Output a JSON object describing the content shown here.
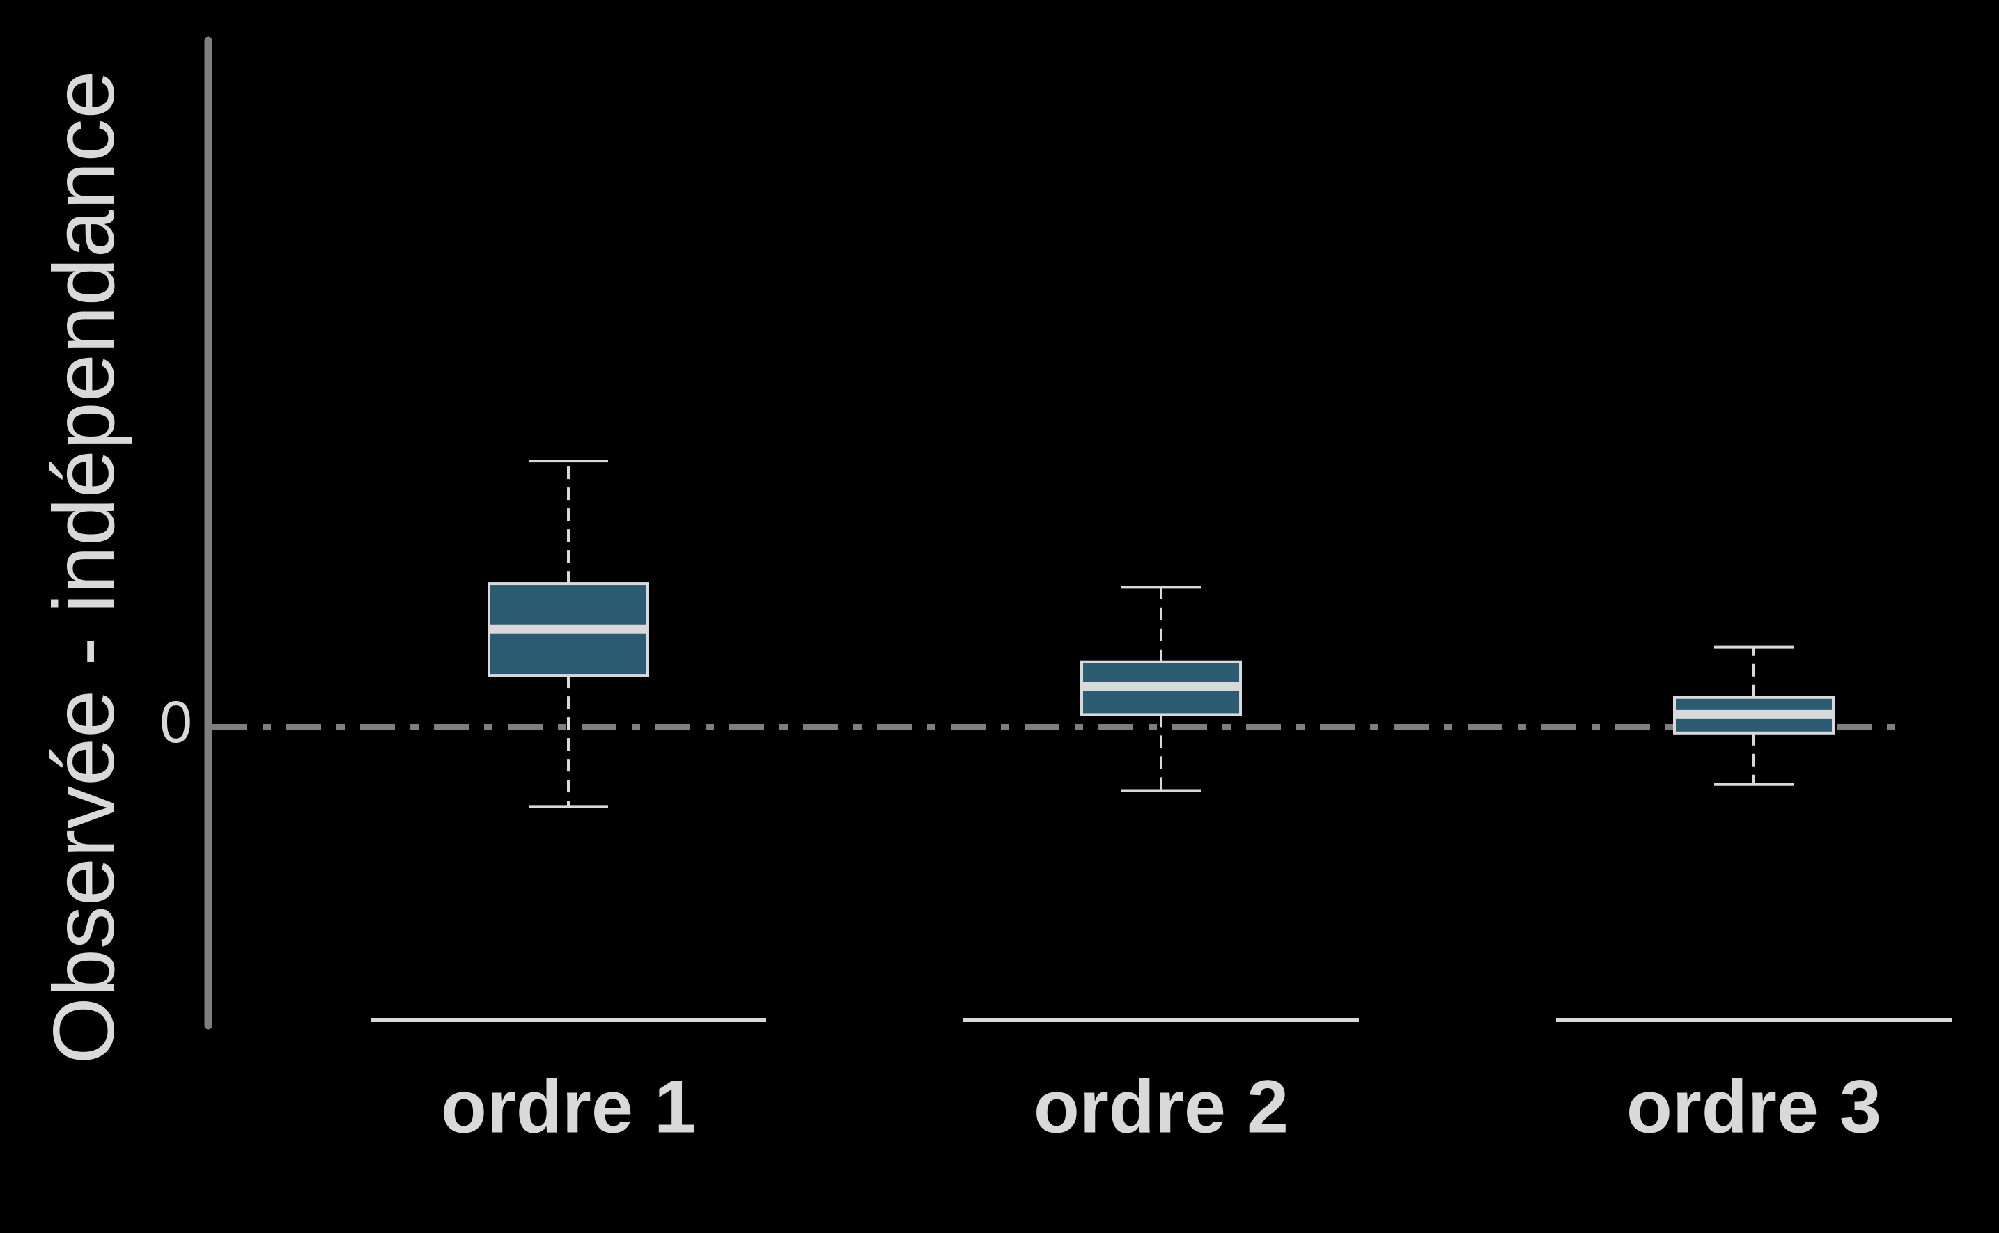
{
  "chart_data": {
    "type": "boxplot",
    "title": "",
    "xlabel": "",
    "ylabel": "Observée - indépendance",
    "y_ticks": [
      "0"
    ],
    "ylim": [
      -1.25,
      4.2
    ],
    "reference_line": {
      "y": 0,
      "style": "dash-dot"
    },
    "grid": false,
    "legend": "none",
    "categories": [
      "ordre 1",
      "ordre 2",
      "ordre 3"
    ],
    "boxes": [
      {
        "category": "ordre 1",
        "whisker_low": -0.65,
        "q1": 0.42,
        "median": 0.8,
        "q3": 1.17,
        "whisker_high": 2.17
      },
      {
        "category": "ordre 2",
        "whisker_low": -0.52,
        "q1": 0.1,
        "median": 0.33,
        "q3": 0.53,
        "whisker_high": 1.14
      },
      {
        "category": "ordre 3",
        "whisker_low": -0.47,
        "q1": -0.05,
        "median": 0.1,
        "q3": 0.24,
        "whisker_high": 0.65
      }
    ]
  },
  "colors": {
    "background": "#000000",
    "box_fill": "#2b5b70",
    "box_edge": "#d9d9d9",
    "median_line": "#d9d9d9",
    "whisker": "#d9d9d9",
    "axis": "#7f7f7f",
    "reference_line": "#7f7f7f",
    "text": "#d9d9d9"
  }
}
